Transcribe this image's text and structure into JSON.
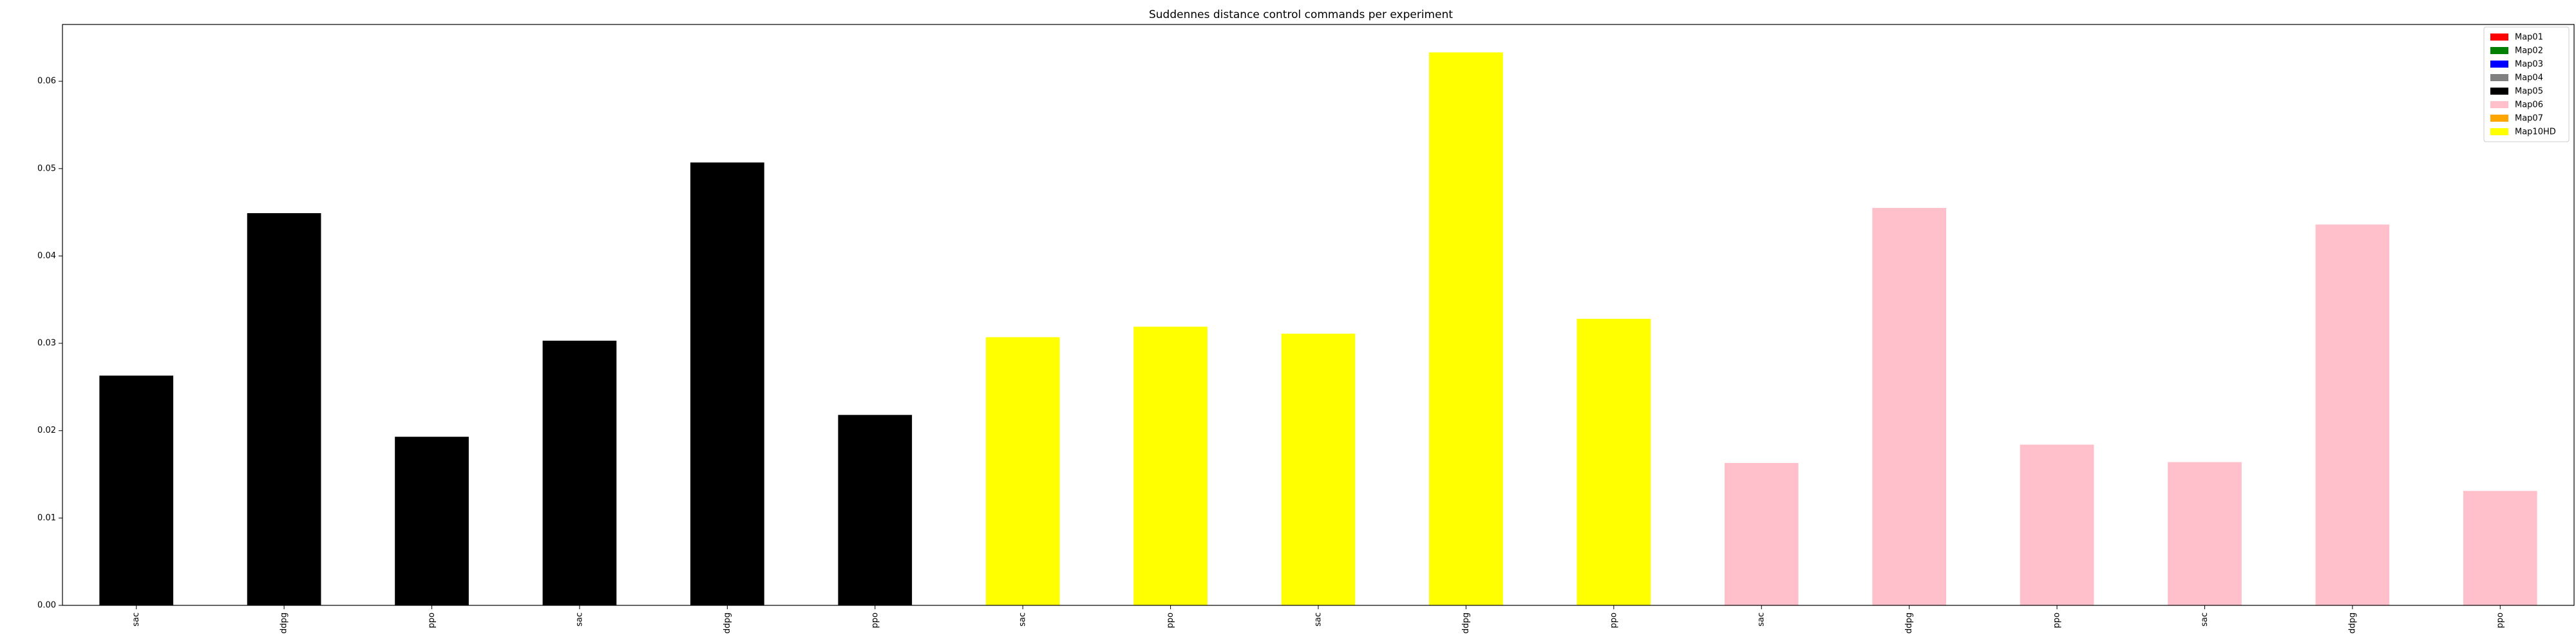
{
  "chart_data": {
    "type": "bar",
    "title": "Suddennes distance control commands per experiment",
    "xlabel": "",
    "ylabel": "",
    "ylim": [
      0,
      0.0665
    ],
    "yticks": [
      "0.00",
      "0.01",
      "0.02",
      "0.03",
      "0.04",
      "0.05",
      "0.06"
    ],
    "grid": false,
    "legend_position": "top-right",
    "categories": [
      "sac",
      "ddpg",
      "ppo",
      "sac",
      "ddpg",
      "ppo",
      "sac",
      "ppo",
      "sac",
      "ddpg",
      "ppo",
      "sac",
      "ddpg",
      "ppo",
      "sac",
      "ddpg",
      "ppo"
    ],
    "values": [
      0.0263,
      0.0449,
      0.0193,
      0.0303,
      0.0507,
      0.0218,
      0.0307,
      0.0319,
      0.0311,
      0.0633,
      0.0328,
      0.0163,
      0.0455,
      0.0184,
      0.0164,
      0.0436,
      0.0131
    ],
    "bar_colors": [
      "#000000",
      "#000000",
      "#000000",
      "#000000",
      "#000000",
      "#000000",
      "#ffff00",
      "#ffff00",
      "#ffff00",
      "#ffff00",
      "#ffff00",
      "#ffc0cb",
      "#ffc0cb",
      "#ffc0cb",
      "#ffc0cb",
      "#ffc0cb",
      "#ffc0cb"
    ],
    "legend": [
      {
        "label": "Map01",
        "color": "#ff0000"
      },
      {
        "label": "Map02",
        "color": "#008000"
      },
      {
        "label": "Map03",
        "color": "#0000ff"
      },
      {
        "label": "Map04",
        "color": "#808080"
      },
      {
        "label": "Map05",
        "color": "#000000"
      },
      {
        "label": "Map06",
        "color": "#ffc0cb"
      },
      {
        "label": "Map07",
        "color": "#ffa500"
      },
      {
        "label": "Map10HD",
        "color": "#ffff00"
      }
    ]
  }
}
